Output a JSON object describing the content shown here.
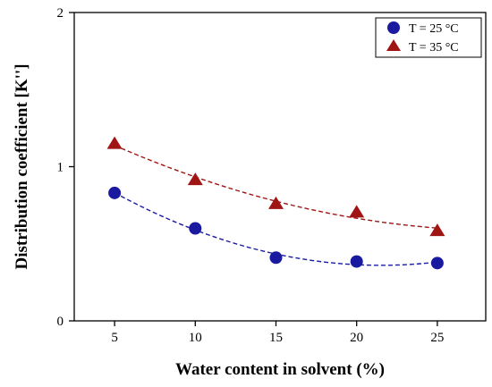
{
  "colors": {
    "series1": "#1a1aa0",
    "series2": "#a01414",
    "axis": "#000000",
    "background": "#ffffff"
  },
  "chart_data": {
    "type": "scatter",
    "xlabel": "Water content in solvent (%)",
    "ylabel": "Distribution coefficient [K'']",
    "xlim": [
      2.5,
      28
    ],
    "ylim": [
      0,
      2
    ],
    "xticks": [
      5,
      10,
      15,
      20,
      25
    ],
    "yticks": [
      0,
      1,
      2
    ],
    "grid": false,
    "legend_position": "top-right",
    "series": [
      {
        "name": "T = 25 °C",
        "marker": "circle",
        "color": "#1a1aa0",
        "x": [
          5,
          10,
          15,
          20,
          25
        ],
        "y": [
          0.83,
          0.6,
          0.41,
          0.385,
          0.375
        ],
        "fit_line": "dashed"
      },
      {
        "name": "T = 35 °C",
        "marker": "triangle",
        "color": "#a01414",
        "x": [
          5,
          10,
          15,
          20,
          25
        ],
        "y": [
          1.15,
          0.915,
          0.76,
          0.705,
          0.585
        ],
        "fit_line": "dashed"
      }
    ]
  }
}
